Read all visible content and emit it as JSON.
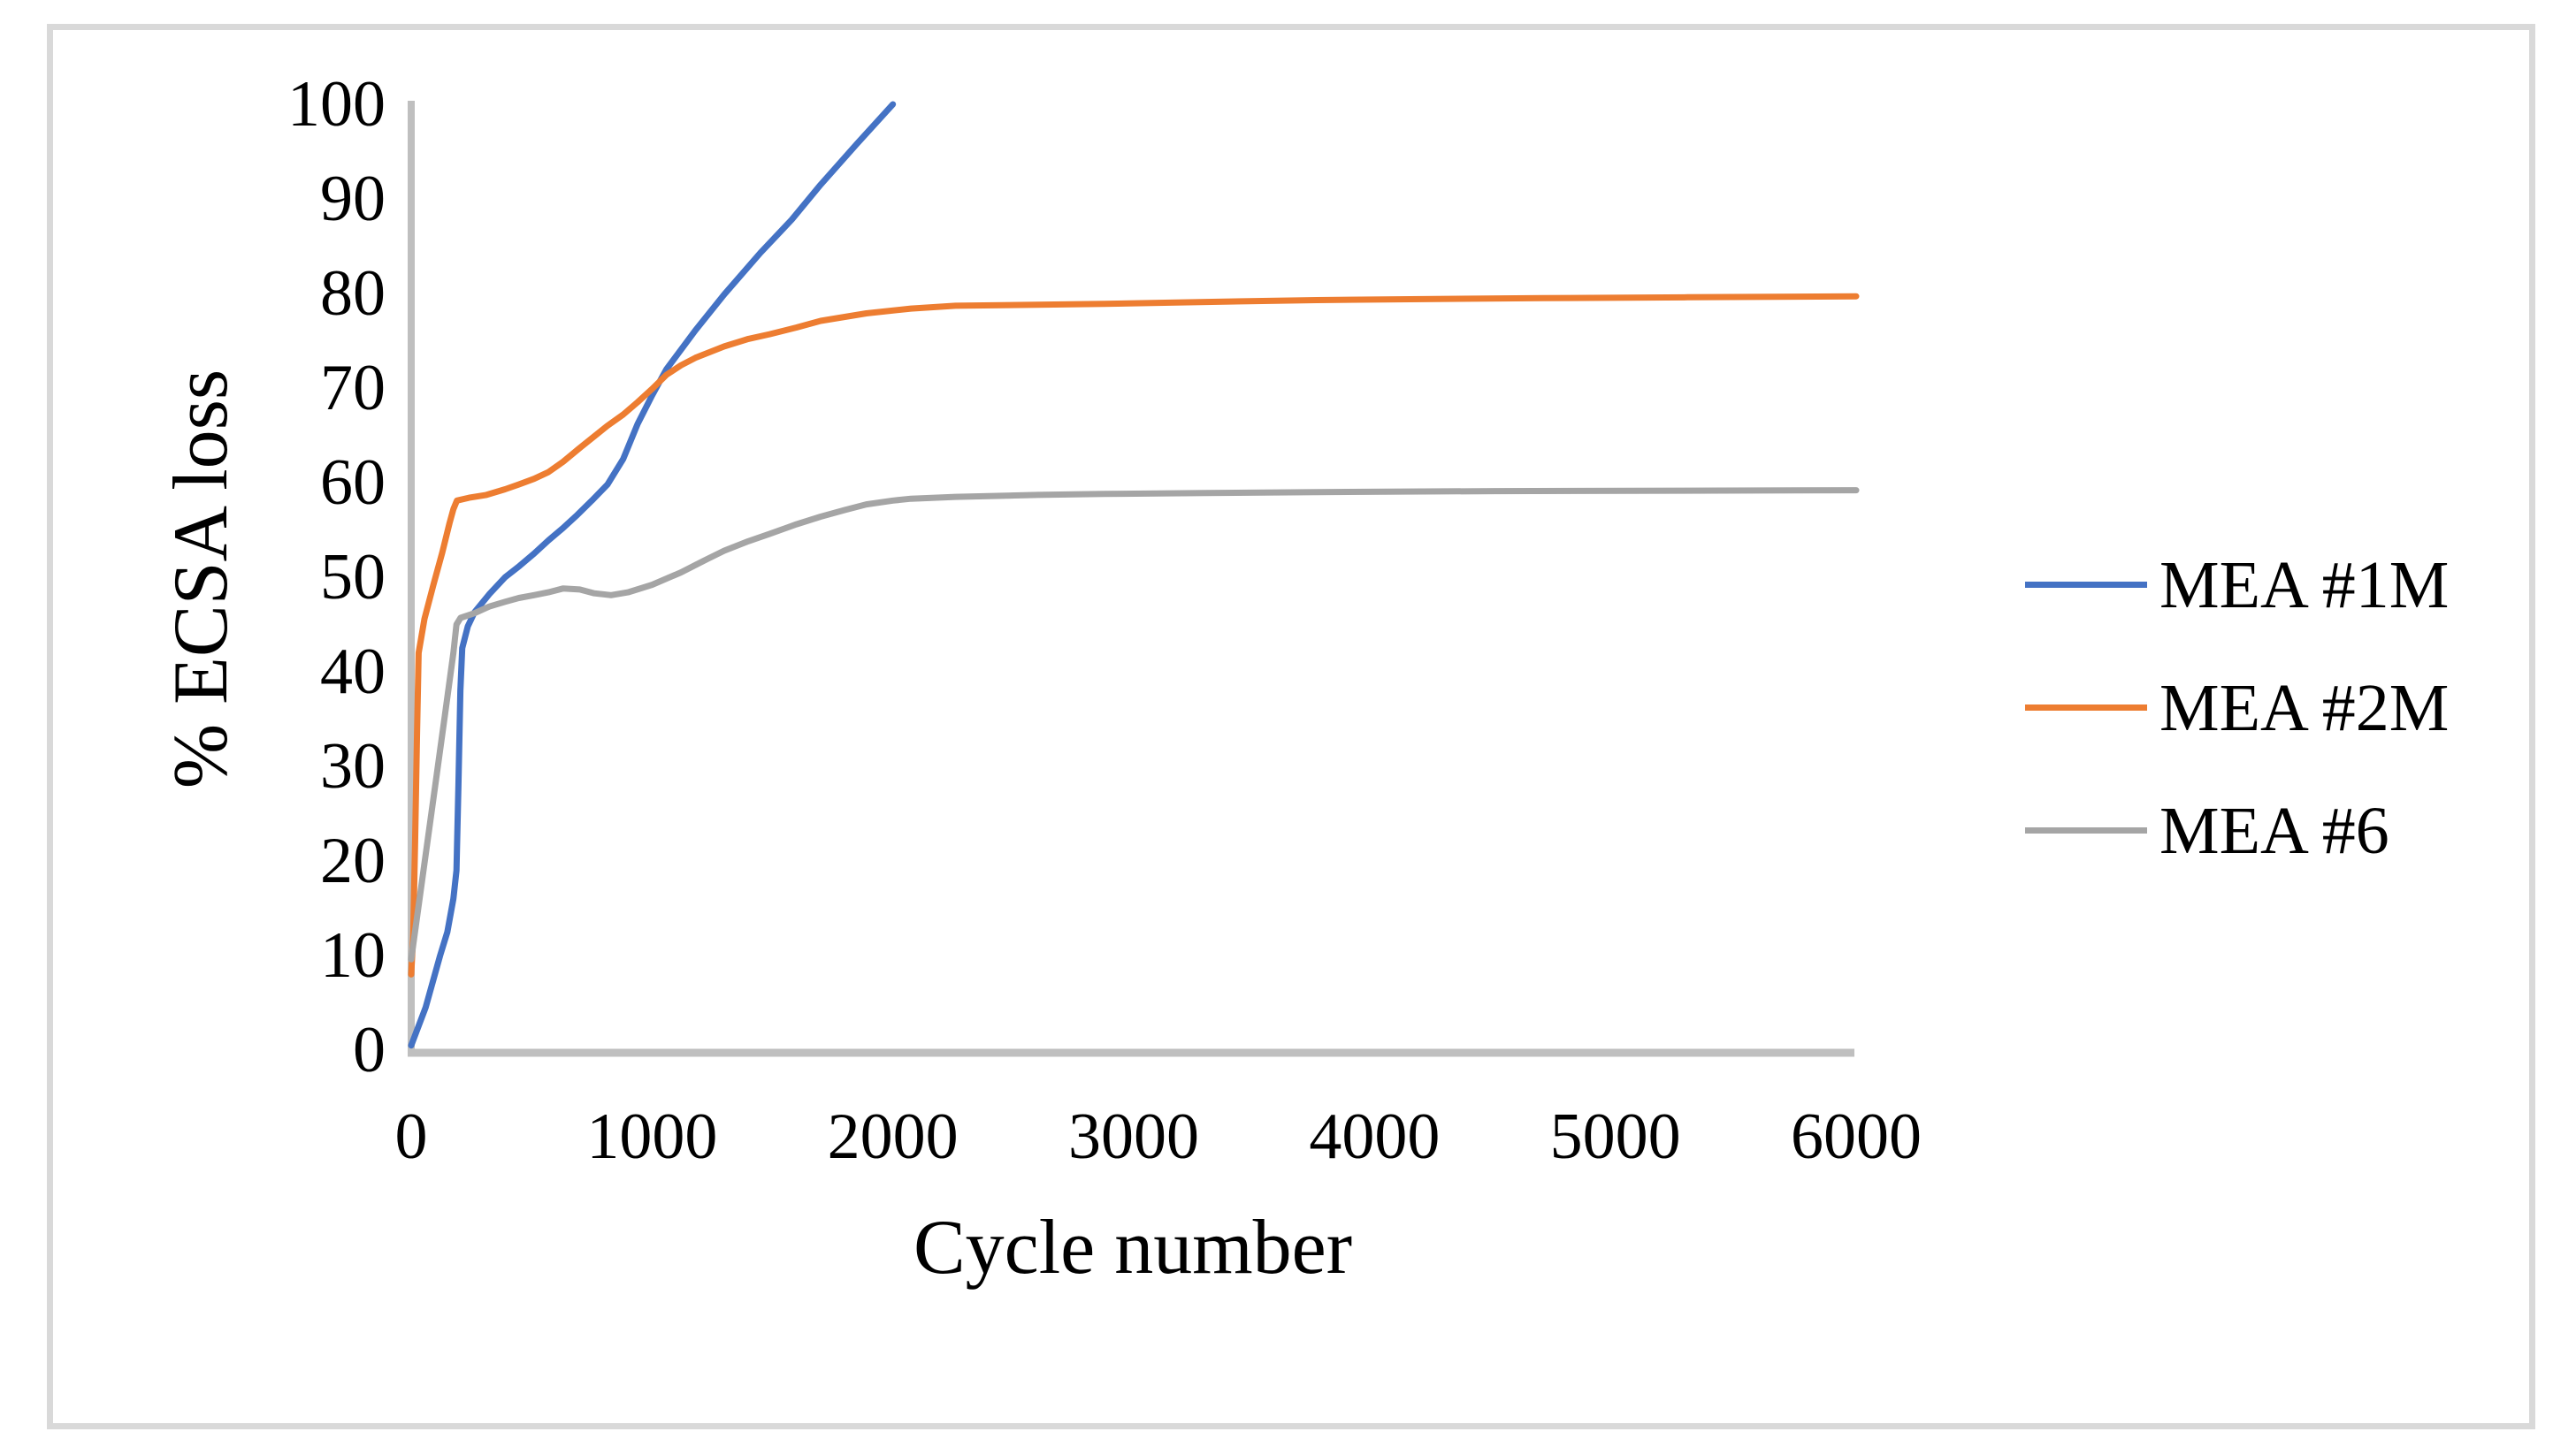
{
  "figure": {
    "background": "#ffffff",
    "border_color": "#d9d9d9"
  },
  "chart_data": {
    "type": "line",
    "title": "",
    "xlabel": "Cycle number",
    "ylabel": "% ECSA loss",
    "xlim": [
      0,
      6000
    ],
    "ylim": [
      0,
      100
    ],
    "x_ticks": [
      "0",
      "1000",
      "2000",
      "3000",
      "4000",
      "5000",
      "6000"
    ],
    "y_ticks": [
      "0",
      "10",
      "20",
      "30",
      "40",
      "50",
      "60",
      "70",
      "80",
      "90",
      "100"
    ],
    "grid": false,
    "legend_position": "right-middle",
    "axis_color": "#bfbfbf",
    "tick_label_color": "#000000",
    "series": [
      {
        "name": "MEA #1M",
        "color": "#4472c4",
        "points": [
          [
            0,
            0.5
          ],
          [
            60,
            4.5
          ],
          [
            120,
            10
          ],
          [
            150,
            12.5
          ],
          [
            175,
            16
          ],
          [
            188,
            19
          ],
          [
            196,
            28
          ],
          [
            204,
            38
          ],
          [
            212,
            42.5
          ],
          [
            235,
            44.8
          ],
          [
            263,
            46.3
          ],
          [
            324,
            48.2
          ],
          [
            390,
            50
          ],
          [
            450,
            51.2
          ],
          [
            510,
            52.5
          ],
          [
            570,
            53.9
          ],
          [
            630,
            55.2
          ],
          [
            690,
            56.6
          ],
          [
            750,
            58.1
          ],
          [
            815,
            59.8
          ],
          [
            880,
            62.5
          ],
          [
            940,
            66.2
          ],
          [
            1000,
            69.2
          ],
          [
            1060,
            72
          ],
          [
            1180,
            76.1
          ],
          [
            1300,
            79.9
          ],
          [
            1450,
            84.3
          ],
          [
            1580,
            87.8
          ],
          [
            1700,
            91.5
          ],
          [
            1850,
            95.8
          ],
          [
            2000,
            100
          ]
        ]
      },
      {
        "name": "MEA #2M",
        "color": "#ed7d31",
        "points": [
          [
            0,
            8
          ],
          [
            8,
            12
          ],
          [
            16,
            22
          ],
          [
            24,
            33
          ],
          [
            31,
            42
          ],
          [
            55,
            45.6
          ],
          [
            92,
            49.2
          ],
          [
            129,
            52.6
          ],
          [
            159,
            55.7
          ],
          [
            175,
            57.2
          ],
          [
            190,
            58.1
          ],
          [
            240,
            58.4
          ],
          [
            312,
            58.7
          ],
          [
            390,
            59.3
          ],
          [
            447,
            59.8
          ],
          [
            510,
            60.4
          ],
          [
            569,
            61.1
          ],
          [
            630,
            62.2
          ],
          [
            692,
            63.5
          ],
          [
            760,
            64.9
          ],
          [
            814,
            66
          ],
          [
            880,
            67.2
          ],
          [
            940,
            68.5
          ],
          [
            1000,
            69.9
          ],
          [
            1060,
            71.4
          ],
          [
            1120,
            72.4
          ],
          [
            1180,
            73.2
          ],
          [
            1300,
            74.4
          ],
          [
            1400,
            75.2
          ],
          [
            1490,
            75.7
          ],
          [
            1600,
            76.4
          ],
          [
            1700,
            77.1
          ],
          [
            1890,
            77.9
          ],
          [
            2075,
            78.4
          ],
          [
            2260,
            78.7
          ],
          [
            2600,
            78.8
          ],
          [
            2880,
            78.9
          ],
          [
            3300,
            79.1
          ],
          [
            3760,
            79.3
          ],
          [
            4200,
            79.4
          ],
          [
            4700,
            79.5
          ],
          [
            5300,
            79.6
          ],
          [
            6000,
            79.7
          ]
        ]
      },
      {
        "name": "MEA #6",
        "color": "#a5a5a5",
        "points": [
          [
            0,
            9.6
          ],
          [
            50,
            18.8
          ],
          [
            100,
            28
          ],
          [
            140,
            35.4
          ],
          [
            175,
            42
          ],
          [
            188,
            45
          ],
          [
            205,
            45.7
          ],
          [
            263,
            46.2
          ],
          [
            324,
            46.9
          ],
          [
            390,
            47.4
          ],
          [
            447,
            47.8
          ],
          [
            510,
            48.1
          ],
          [
            569,
            48.4
          ],
          [
            630,
            48.8
          ],
          [
            700,
            48.7
          ],
          [
            760,
            48.3
          ],
          [
            830,
            48.1
          ],
          [
            900,
            48.4
          ],
          [
            1000,
            49.2
          ],
          [
            1120,
            50.5
          ],
          [
            1220,
            51.8
          ],
          [
            1300,
            52.8
          ],
          [
            1400,
            53.8
          ],
          [
            1490,
            54.6
          ],
          [
            1600,
            55.6
          ],
          [
            1700,
            56.4
          ],
          [
            1800,
            57.1
          ],
          [
            1890,
            57.7
          ],
          [
            2000,
            58.1
          ],
          [
            2075,
            58.3
          ],
          [
            2260,
            58.5
          ],
          [
            2600,
            58.7
          ],
          [
            2880,
            58.8
          ],
          [
            3300,
            58.9
          ],
          [
            3760,
            59
          ],
          [
            4500,
            59.1
          ],
          [
            6000,
            59.2
          ]
        ]
      }
    ]
  }
}
